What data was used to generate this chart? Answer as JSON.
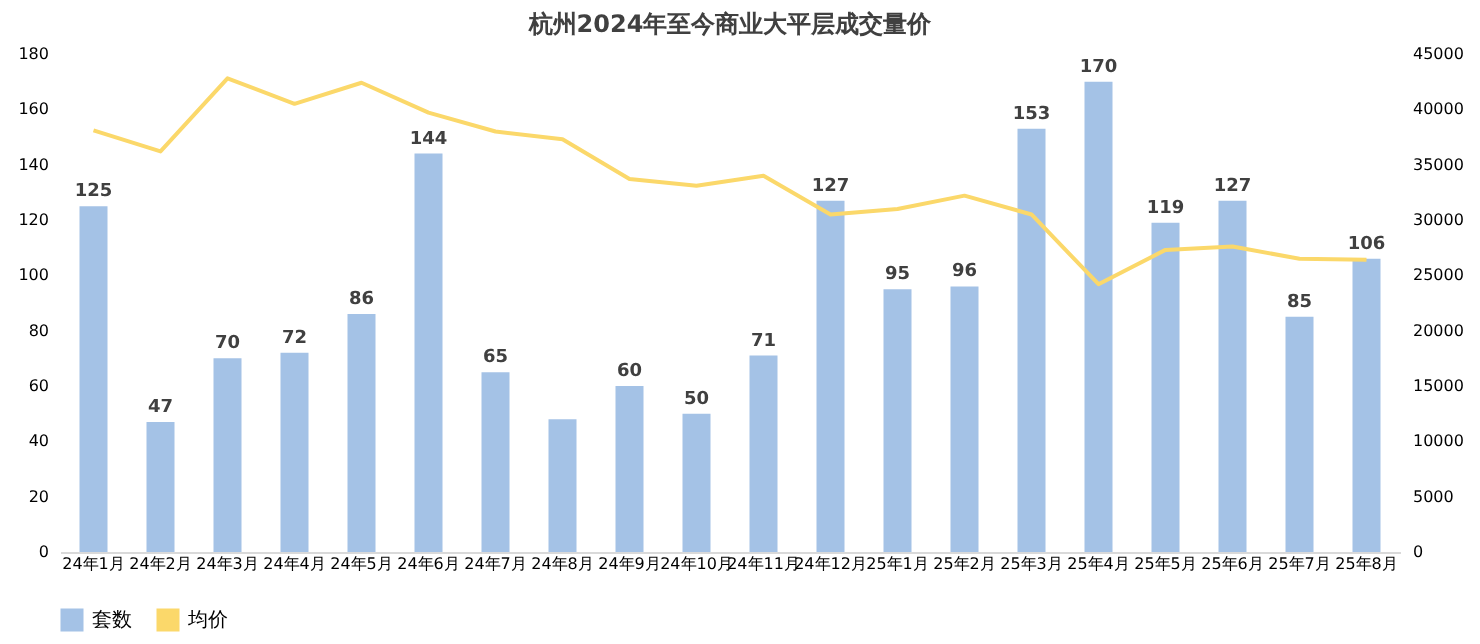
{
  "chart_data": {
    "type": "bar",
    "title": "杭州2024年至今商业大平层成交量价",
    "categories": [
      "24年1月",
      "24年2月",
      "24年3月",
      "24年4月",
      "24年5月",
      "24年6月",
      "24年7月",
      "24年8月",
      "24年9月",
      "24年10月",
      "24年11月",
      "24年12月",
      "25年1月",
      "25年2月",
      "25年3月",
      "25年4月",
      "25年5月",
      "25年6月",
      "25年7月",
      "25年8月"
    ],
    "series": [
      {
        "name": "套数",
        "color": "#a4c2e6",
        "values": [
          125,
          47,
          70,
          72,
          86,
          144,
          65,
          48,
          60,
          50,
          71,
          127,
          95,
          96,
          153,
          170,
          119,
          127,
          85,
          106
        ],
        "value_labels": [
          "125",
          "47",
          "70",
          "72",
          "86",
          "144",
          "65",
          null,
          "60",
          "50",
          "71",
          "127",
          "95",
          "96",
          "153",
          "170",
          "119",
          "127",
          "85",
          "106"
        ]
      },
      {
        "name": "均价",
        "type": "line",
        "axis": "y2",
        "color": "#fbd86a",
        "values": [
          38100,
          36200,
          42800,
          40500,
          42400,
          39700,
          38000,
          37300,
          33700,
          33100,
          34000,
          30500,
          31000,
          32200,
          30500,
          24200,
          27300,
          27600,
          26500,
          26400
        ]
      }
    ],
    "ylim": [
      0,
      180
    ],
    "yticks": [
      0,
      20,
      40,
      60,
      80,
      100,
      120,
      140,
      160,
      180
    ],
    "y2lim": [
      0,
      45000
    ],
    "y2ticks": [
      0,
      5000,
      10000,
      15000,
      20000,
      25000,
      30000,
      35000,
      40000,
      45000
    ],
    "grid": false,
    "legend": "bottom",
    "marker": "none"
  }
}
